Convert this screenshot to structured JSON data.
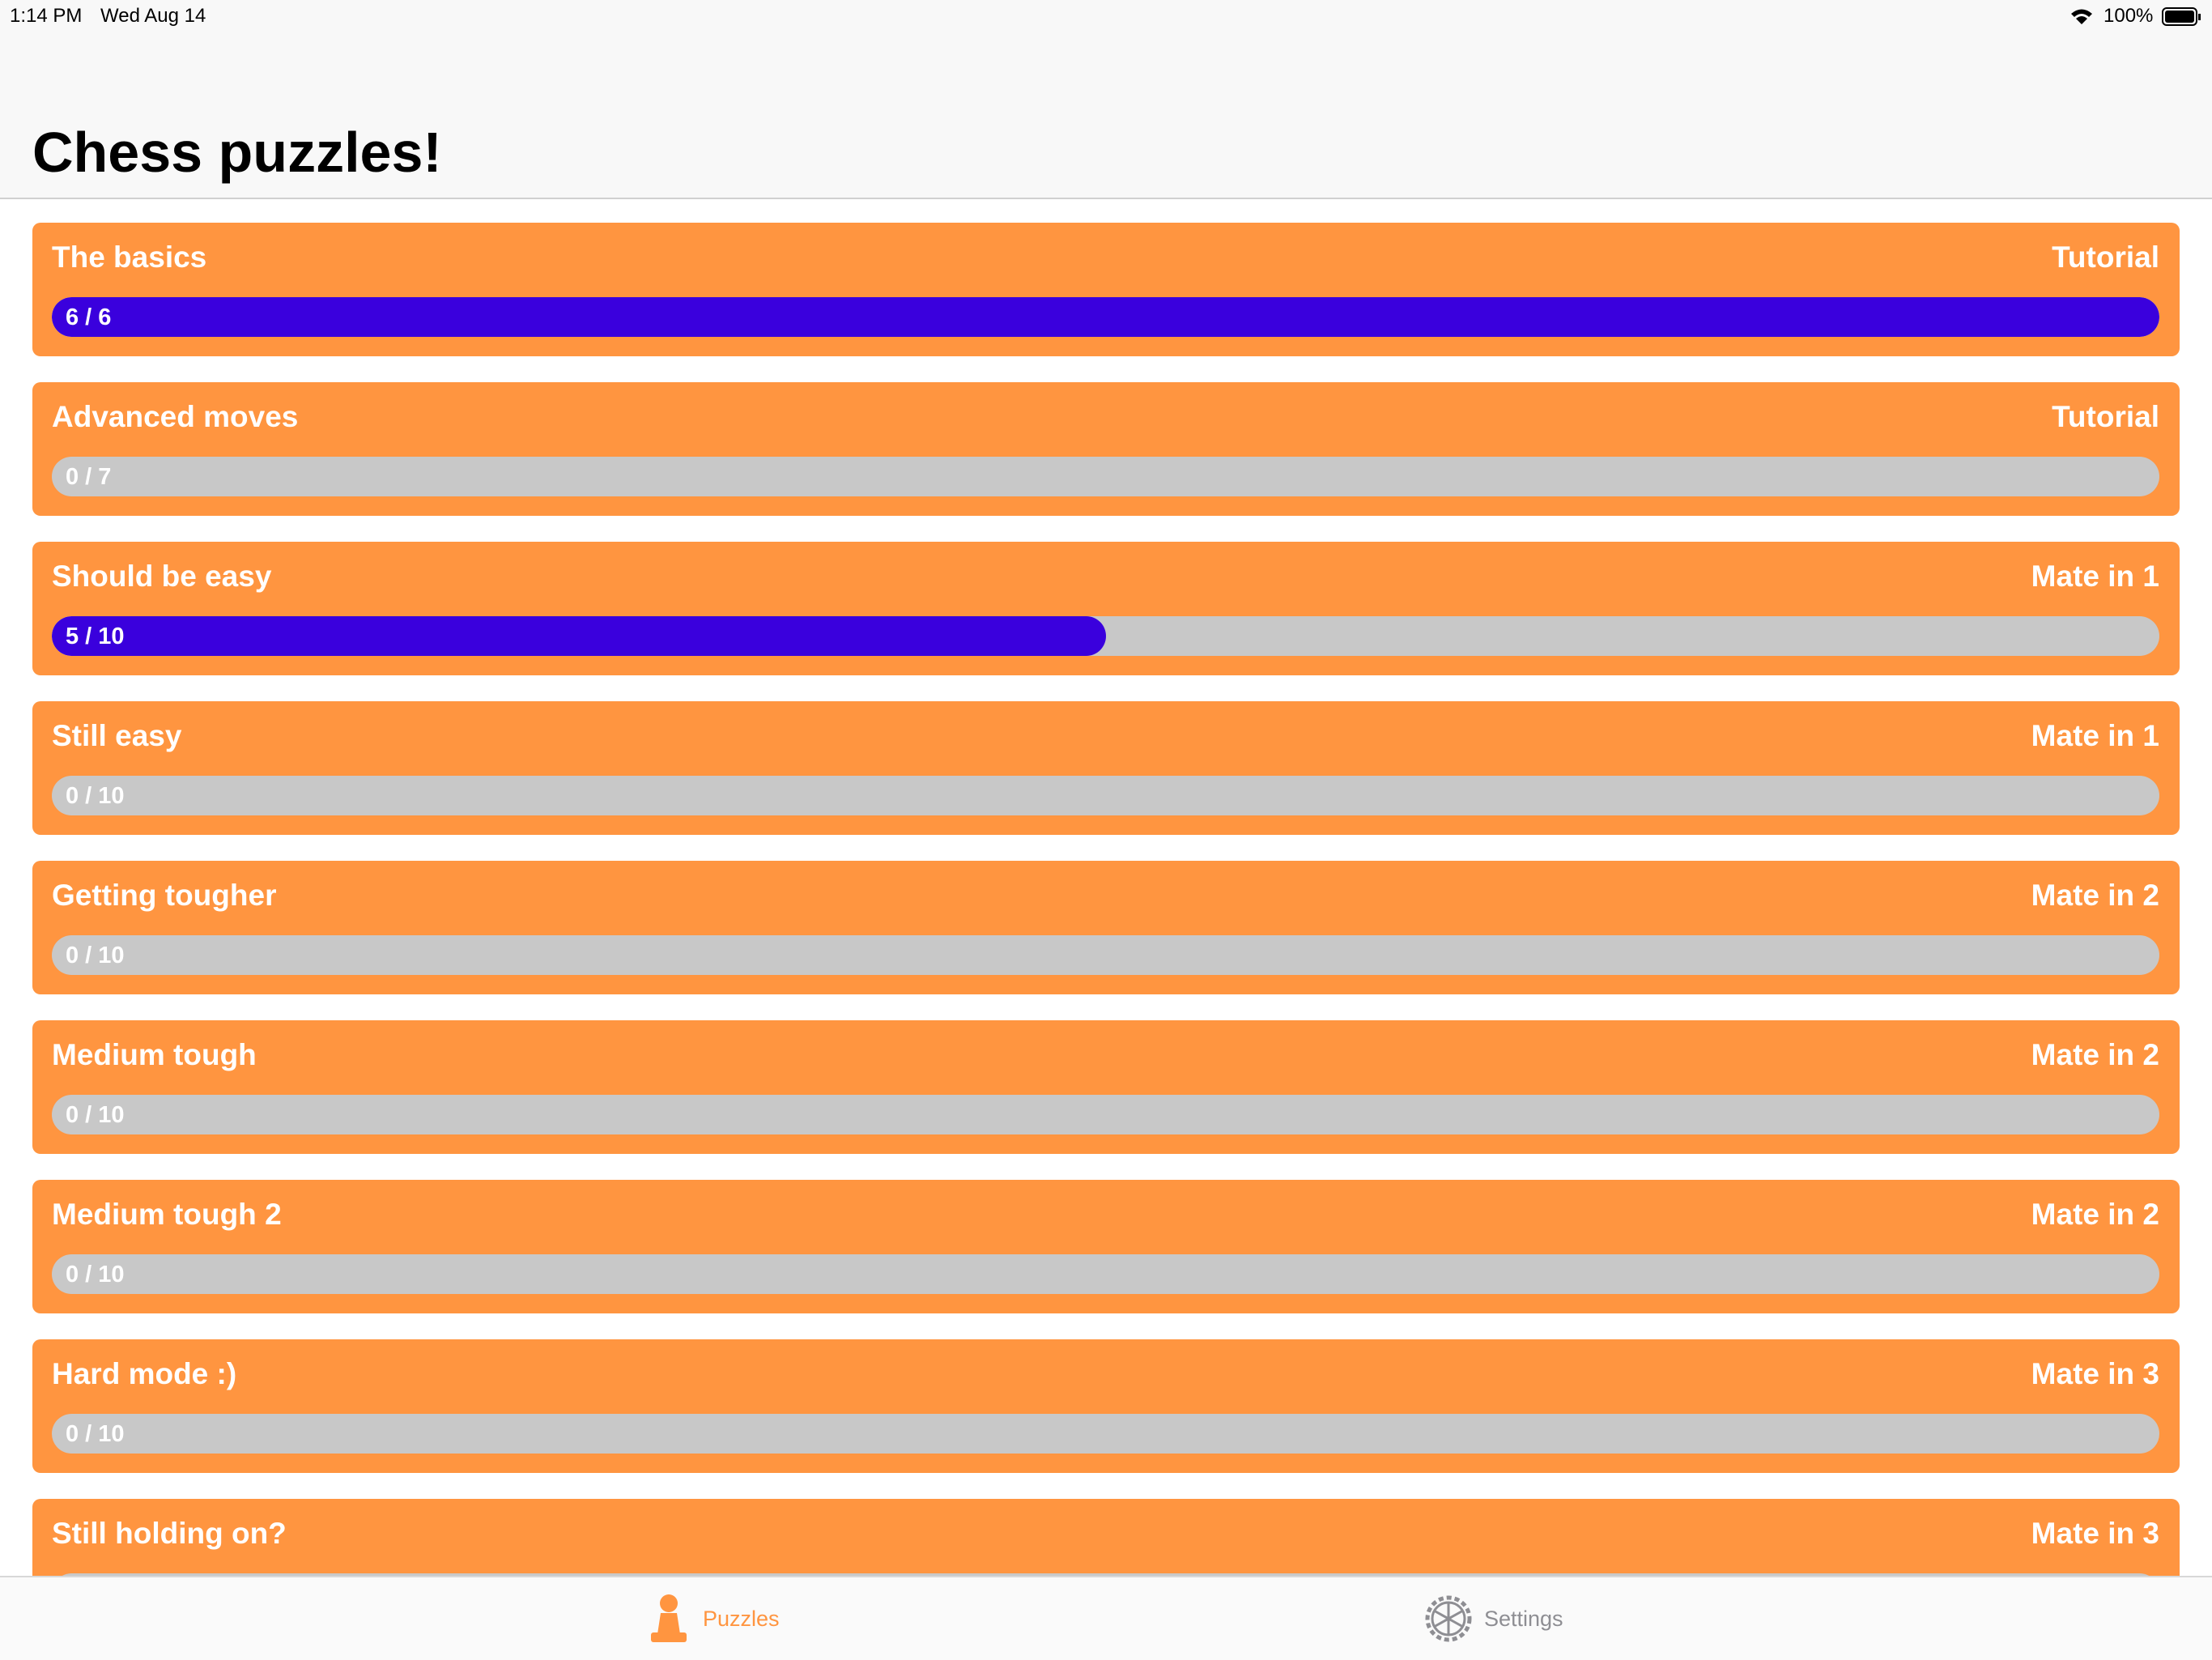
{
  "status_bar": {
    "time": "1:14 PM",
    "date": "Wed Aug 14",
    "battery": "100%"
  },
  "header": {
    "title": "Chess puzzles!"
  },
  "items": [
    {
      "name": "The basics",
      "category": "Tutorial",
      "progress": {
        "done": 6,
        "total": 6,
        "label": "6 / 6"
      }
    },
    {
      "name": "Advanced moves",
      "category": "Tutorial",
      "progress": {
        "done": 0,
        "total": 7,
        "label": "0 / 7"
      }
    },
    {
      "name": "Should be easy",
      "category": "Mate in 1",
      "progress": {
        "done": 5,
        "total": 10,
        "label": "5 / 10"
      }
    },
    {
      "name": "Still easy",
      "category": "Mate in 1",
      "progress": {
        "done": 0,
        "total": 10,
        "label": "0 / 10"
      }
    },
    {
      "name": "Getting tougher",
      "category": "Mate in 2",
      "progress": {
        "done": 0,
        "total": 10,
        "label": "0 / 10"
      }
    },
    {
      "name": "Medium tough",
      "category": "Mate in 2",
      "progress": {
        "done": 0,
        "total": 10,
        "label": "0 / 10"
      }
    },
    {
      "name": "Medium tough 2",
      "category": "Mate in 2",
      "progress": {
        "done": 0,
        "total": 10,
        "label": "0 / 10"
      }
    },
    {
      "name": "Hard mode :)",
      "category": "Mate in 3",
      "progress": {
        "done": 0,
        "total": 10,
        "label": "0 / 10"
      }
    },
    {
      "name": "Still holding on?",
      "category": "Mate in 3"
    }
  ],
  "tabs": [
    {
      "label": "Puzzles",
      "active": true
    },
    {
      "label": "Settings",
      "active": false
    }
  ]
}
